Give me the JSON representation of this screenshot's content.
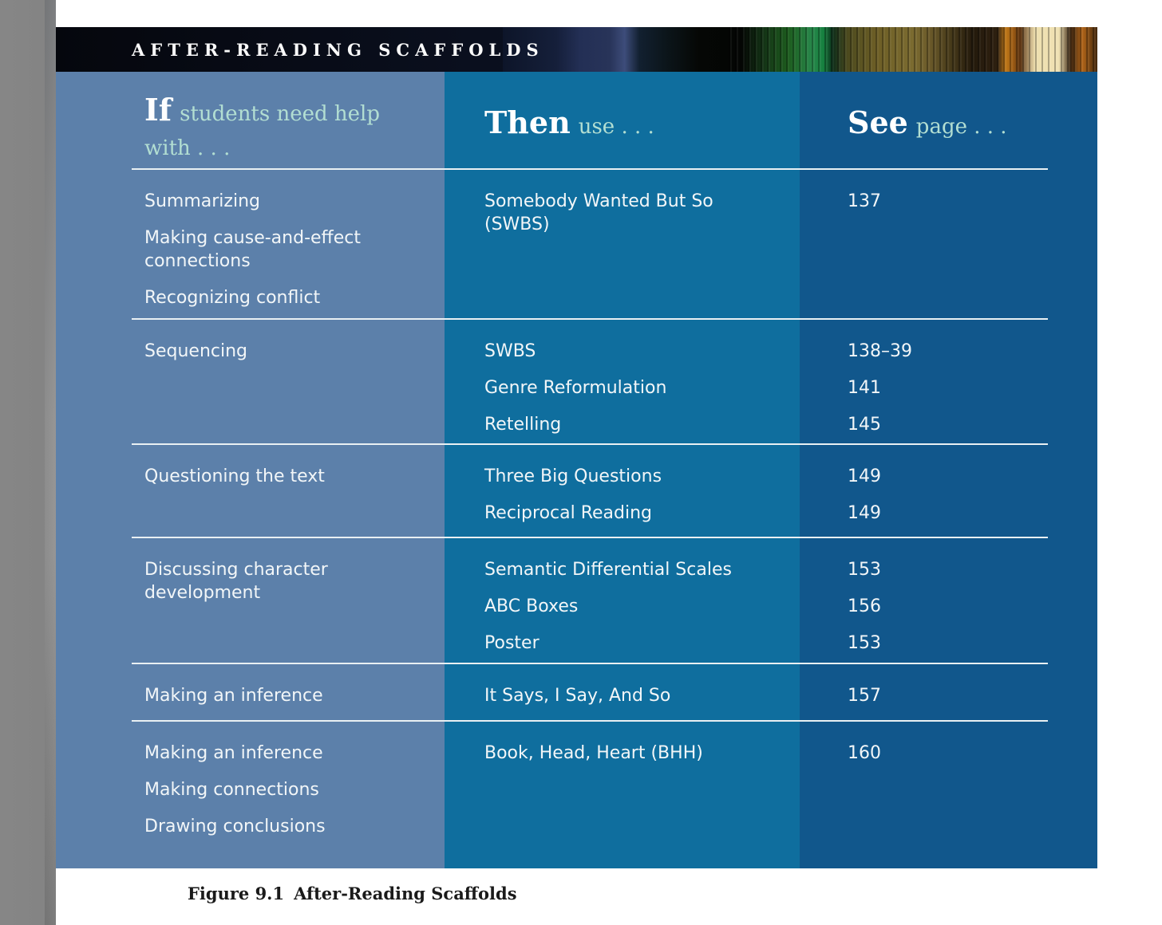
{
  "header": {
    "title": "AFTER-READING SCAFFOLDS"
  },
  "colors": {
    "col_if": "#5c80aa",
    "col_then": "#0f6e9e",
    "col_see": "#11578c",
    "mint": "#b2ded2",
    "header_bar": "#0a0f1e",
    "separator_line": "#e9f0f3",
    "body_text": "#f2f6f8",
    "caption_text": "#1a1a1a"
  },
  "table": {
    "columns": [
      {
        "lead": "If",
        "rest": "students need help with . . ."
      },
      {
        "lead": "Then",
        "rest": "use . . ."
      },
      {
        "lead": "See",
        "rest": "page . . ."
      }
    ],
    "rows": [
      {
        "help_with": [
          "Summarizing",
          "Making cause-and-effect connections",
          "Recognizing conflict"
        ],
        "strategies": [
          "Somebody Wanted But So (SWBS)"
        ],
        "pages": [
          "137"
        ]
      },
      {
        "help_with": [
          "Sequencing"
        ],
        "strategies": [
          "SWBS",
          "Genre Reformulation",
          "Retelling"
        ],
        "pages": [
          "138–39",
          "141",
          "145"
        ]
      },
      {
        "help_with": [
          "Questioning the text"
        ],
        "strategies": [
          "Three Big Questions",
          "Reciprocal Reading"
        ],
        "pages": [
          "149",
          "149"
        ]
      },
      {
        "help_with": [
          "Discussing character development"
        ],
        "strategies": [
          "Semantic Differential Scales",
          "ABC Boxes",
          "Poster"
        ],
        "pages": [
          "153",
          "156",
          "153"
        ]
      },
      {
        "help_with": [
          "Making an inference"
        ],
        "strategies": [
          "It Says, I Say, And So"
        ],
        "pages": [
          "157"
        ]
      },
      {
        "help_with": [
          "Making an inference",
          "Making connections",
          "Drawing conclusions"
        ],
        "strategies": [
          "Book, Head, Heart (BHH)"
        ],
        "pages": [
          "160"
        ]
      }
    ]
  },
  "caption": {
    "label": "Figure 9.1",
    "text": "After-Reading Scaffolds"
  }
}
